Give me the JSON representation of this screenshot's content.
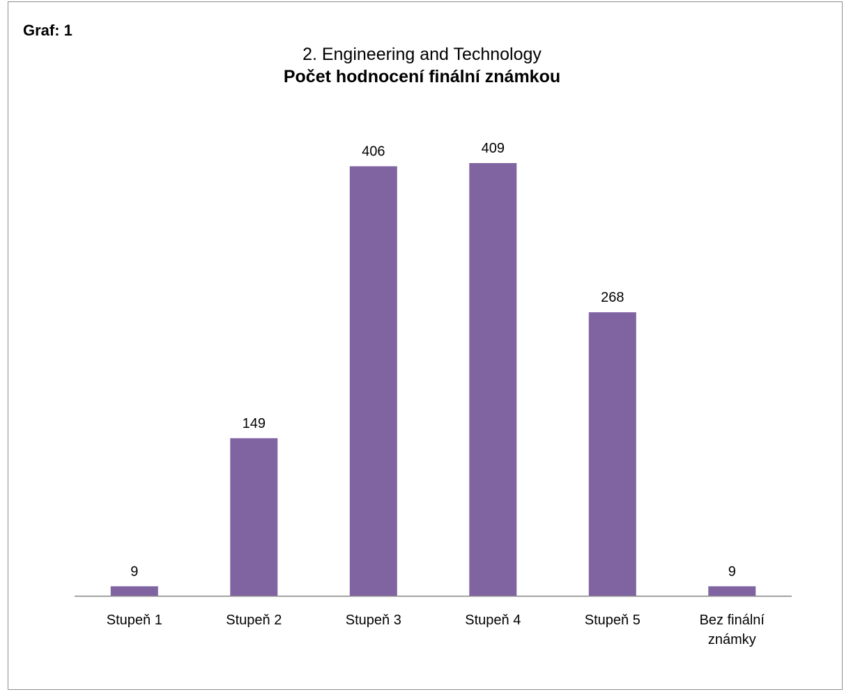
{
  "graf_label": "Graf: 1",
  "chart_data": {
    "type": "bar",
    "title": "2. Engineering and Technology",
    "subtitle": "Počet hodnocení finální známkou",
    "xlabel": "",
    "ylabel": "",
    "categories": [
      [
        "Stupeň 1"
      ],
      [
        "Stupeň 2"
      ],
      [
        "Stupeň 3"
      ],
      [
        "Stupeň 4"
      ],
      [
        "Stupeň 5"
      ],
      [
        "Bez finální",
        "známky"
      ]
    ],
    "values": [
      9,
      149,
      406,
      409,
      268,
      9
    ],
    "ylim": [
      0,
      409
    ],
    "bar_color": "#8064a2",
    "axis_color": "#868686",
    "grid": false,
    "data_labels": true
  }
}
